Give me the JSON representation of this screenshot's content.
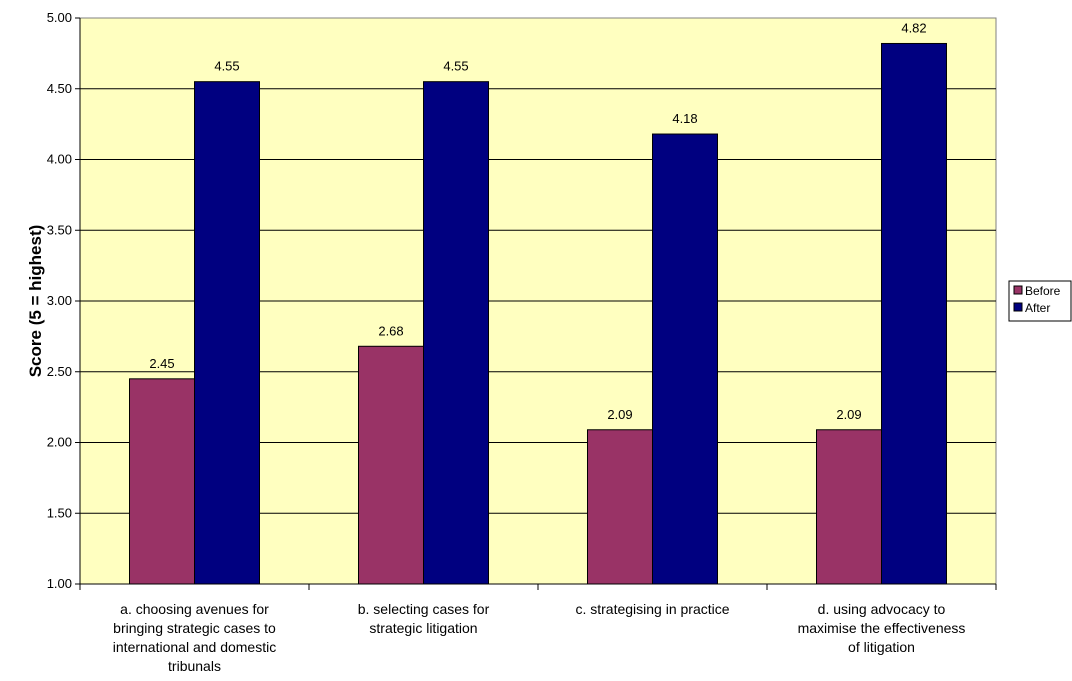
{
  "chart_data": {
    "type": "bar",
    "title": "",
    "xlabel": "",
    "ylabel": "Score (5 = highest)",
    "ylim": [
      1.0,
      5.0
    ],
    "yticks": [
      "1.00",
      "1.50",
      "2.00",
      "2.50",
      "3.00",
      "3.50",
      "4.00",
      "4.50",
      "5.00"
    ],
    "grid": true,
    "legend_position": "right",
    "plot_background": "#FFFFC0",
    "categories": [
      "a. choosing avenues for bringing strategic cases to international and domestic tribunals",
      "b. selecting cases for strategic litigation",
      "c. strategising in practice",
      "d. using advocacy to maximise the effectiveness of litigation"
    ],
    "category_lines": [
      [
        "a. choosing avenues for",
        "bringing strategic cases to",
        "international and domestic",
        "tribunals"
      ],
      [
        "b. selecting cases for",
        "strategic litigation"
      ],
      [
        "c. strategising in practice"
      ],
      [
        "d. using advocacy to",
        "maximise the effectiveness",
        "of litigation"
      ]
    ],
    "series": [
      {
        "name": "Before",
        "color": "#993366",
        "values": [
          2.45,
          2.68,
          2.09,
          2.09
        ],
        "labels": [
          "2.45",
          "2.68",
          "2.09",
          "2.09"
        ]
      },
      {
        "name": "After",
        "color": "#000080",
        "values": [
          4.55,
          4.55,
          4.18,
          4.82
        ],
        "labels": [
          "4.55",
          "4.55",
          "4.18",
          "4.82"
        ]
      }
    ]
  }
}
